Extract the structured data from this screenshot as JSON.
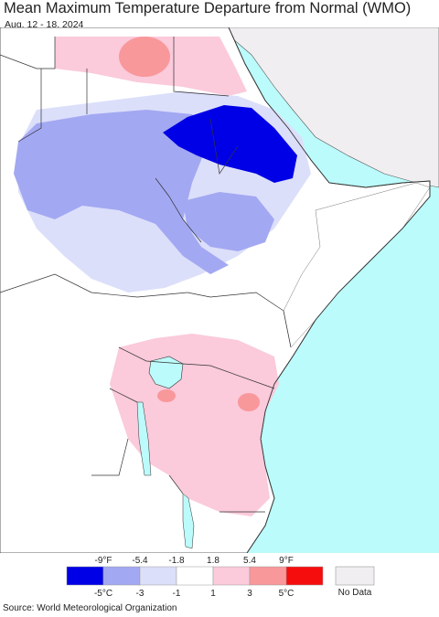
{
  "title": "Mean Maximum Temperature Departure from Normal (WMO)",
  "date_range": "Aug. 12 - 18, 2024",
  "legend": {
    "fahrenheit_ticks": [
      "-9°F",
      "-5.4",
      "-1.8",
      "1.8",
      "5.4",
      "9°F"
    ],
    "celsius_ticks": [
      "-5°C",
      "-3",
      "-1",
      "1",
      "3",
      "5°C"
    ],
    "bins": [
      {
        "color": "#0000e6"
      },
      {
        "color": "#a3a8f2"
      },
      {
        "color": "#dcdffa"
      },
      {
        "color": "#ffffff"
      },
      {
        "color": "#fbcadb"
      },
      {
        "color": "#f8989b"
      },
      {
        "color": "#f50d0d"
      }
    ],
    "no_data_label": "No Data",
    "no_data_color": "#f0eef0"
  },
  "source": "Source: World Meteorological Organization",
  "colors": {
    "ocean": "#bcfbfb",
    "border": "#333333"
  }
}
